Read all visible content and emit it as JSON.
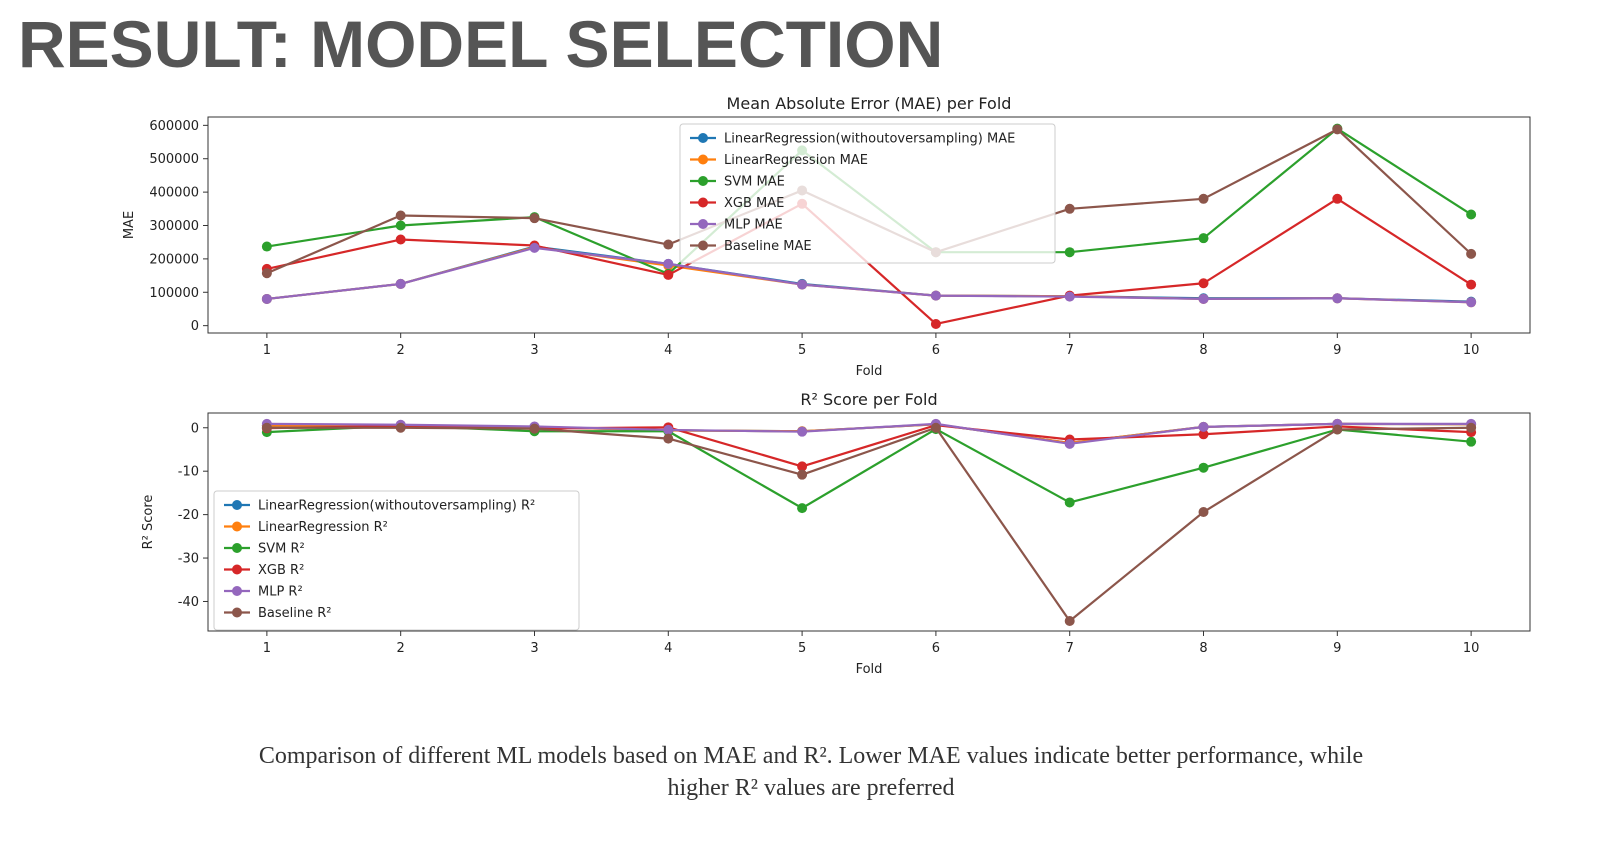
{
  "slide": {
    "title": "RESULT: MODEL SELECTION",
    "caption_line1": "Comparison of different ML models based on MAE and R². Lower MAE values indicate better performance, while",
    "caption_line2": "higher R² values are preferred"
  },
  "chart_data": [
    {
      "type": "line",
      "title": "Mean Absolute Error (MAE) per Fold",
      "xlabel": "Fold",
      "ylabel": "MAE",
      "x": [
        1,
        2,
        3,
        4,
        5,
        6,
        7,
        8,
        9,
        10
      ],
      "xlim": [
        0.56,
        10.44
      ],
      "ylim": [
        -22000,
        625000
      ],
      "yticks": [
        0,
        100000,
        200000,
        300000,
        400000,
        500000,
        600000
      ],
      "grid": false,
      "legend": "upper center",
      "series": [
        {
          "name": "LinearRegression(withoutoversampling) MAE",
          "color": "#1f77b4",
          "values": [
            80000,
            125000,
            237000,
            185000,
            125000,
            90000,
            88000,
            82000,
            82000,
            72000
          ]
        },
        {
          "name": "LinearRegression MAE",
          "color": "#ff7f0e",
          "values": [
            80000,
            125000,
            235000,
            180000,
            123000,
            90000,
            88000,
            80000,
            82000,
            70000
          ]
        },
        {
          "name": "SVM MAE",
          "color": "#2ca02c",
          "values": [
            237000,
            300000,
            325000,
            155000,
            525000,
            220000,
            220000,
            262000,
            590000,
            333000
          ]
        },
        {
          "name": "XGB MAE",
          "color": "#d62728",
          "values": [
            170000,
            258000,
            240000,
            152000,
            365000,
            5000,
            90000,
            127000,
            380000,
            123000
          ]
        },
        {
          "name": "MLP MAE",
          "color": "#9467bd",
          "values": [
            80000,
            125000,
            233000,
            185000,
            123000,
            90000,
            87000,
            80000,
            82000,
            70000
          ]
        },
        {
          "name": "Baseline MAE",
          "color": "#8c564b",
          "values": [
            157000,
            330000,
            322000,
            243000,
            405000,
            220000,
            350000,
            380000,
            588000,
            215000
          ]
        }
      ]
    },
    {
      "type": "line",
      "title": "R² Score per Fold",
      "xlabel": "Fold",
      "ylabel": "R² Score",
      "x": [
        1,
        2,
        3,
        4,
        5,
        6,
        7,
        8,
        9,
        10
      ],
      "xlim": [
        0.56,
        10.44
      ],
      "ylim": [
        -46.8,
        3.4
      ],
      "yticks": [
        0,
        -10,
        -20,
        -30,
        -40
      ],
      "grid": false,
      "legend": "lower left",
      "series": [
        {
          "name": "LinearRegression(withoutoversampling) R²",
          "color": "#1f77b4",
          "values": [
            0.5,
            0.6,
            0.2,
            -0.6,
            -0.8,
            0.8,
            -3.5,
            0.2,
            0.9,
            0.8
          ]
        },
        {
          "name": "LinearRegression R²",
          "color": "#ff7f0e",
          "values": [
            0.5,
            0.6,
            0.2,
            -0.6,
            -0.8,
            0.8,
            -3.5,
            0.2,
            0.9,
            0.8
          ]
        },
        {
          "name": "SVM R²",
          "color": "#2ca02c",
          "values": [
            -1.0,
            0.5,
            -0.8,
            -0.8,
            -18.5,
            -0.3,
            -17.2,
            -9.2,
            -0.4,
            -3.2
          ]
        },
        {
          "name": "XGB R²",
          "color": "#d62728",
          "values": [
            -0.1,
            0.4,
            -0.2,
            0.1,
            -8.9,
            0.6,
            -2.7,
            -1.5,
            0.3,
            -1.0
          ]
        },
        {
          "name": "MLP R²",
          "color": "#9467bd",
          "values": [
            0.9,
            0.7,
            0.3,
            -0.5,
            -0.9,
            0.9,
            -3.7,
            0.2,
            0.9,
            0.9
          ]
        },
        {
          "name": "Baseline R²",
          "color": "#8c564b",
          "values": [
            0.0,
            0.0,
            -0.2,
            -2.5,
            -10.8,
            0.0,
            -44.5,
            -19.4,
            -0.4,
            0.0
          ]
        }
      ]
    }
  ]
}
